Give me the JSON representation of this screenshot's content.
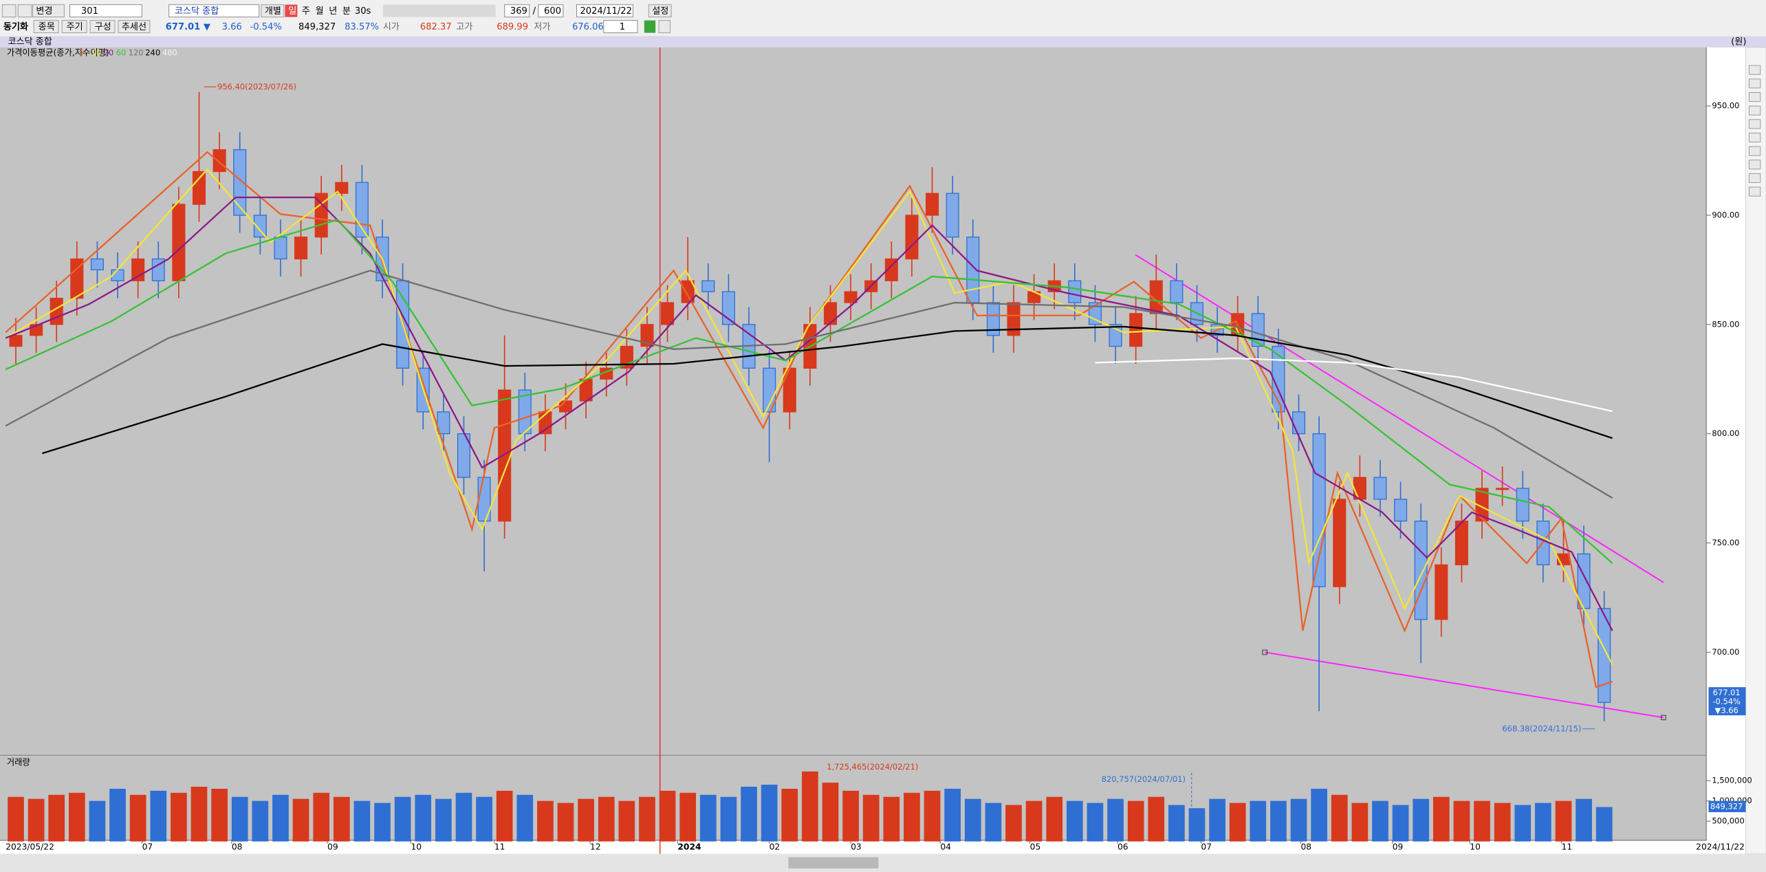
{
  "toolbar": {
    "row1": {
      "change": "변경",
      "code": "301",
      "name": "코스닥 종합",
      "single": "개별",
      "periods": [
        "일",
        "주",
        "월",
        "년",
        "분",
        "30s"
      ],
      "count": "369",
      "slash": "/",
      "max": "600",
      "date": "2024/11/22",
      "settings": "설정"
    },
    "row2": {
      "sync": "동기화",
      "stock": "종목",
      "cycle": "주기",
      "compose": "구성",
      "trend": "추세선",
      "price": "677.01 ▼",
      "change": "3.66",
      "rate": "-0.54%",
      "volume": "849,327",
      "vol_rate": "83.57%",
      "open_label": "시가",
      "open": "682.37",
      "high_label": "고가",
      "high": "689.99",
      "low_label": "저가",
      "low": "676.06",
      "step": "1"
    },
    "unit": "(원)"
  },
  "chart_data": [
    {
      "type": "candlestick",
      "title": "코스닥 종합",
      "legend_title": "가격이동평균(종가,지수이평)",
      "open": [
        840,
        845,
        850,
        862,
        880,
        875,
        870,
        880,
        870,
        905,
        920,
        930,
        900,
        890,
        880,
        890,
        910,
        915,
        890,
        870,
        830,
        810,
        800,
        780,
        760,
        820,
        800,
        810,
        815,
        825,
        830,
        840,
        850,
        860,
        870,
        865,
        850,
        830,
        810,
        830,
        850,
        860,
        865,
        870,
        880,
        900,
        910,
        890,
        860,
        845,
        860,
        865,
        870,
        860,
        850,
        840,
        855,
        870,
        860,
        850,
        845,
        855,
        840,
        810,
        800,
        730,
        770,
        780,
        770,
        760,
        715,
        740,
        760,
        775,
        775,
        760,
        740,
        745,
        720
      ],
      "high": [
        853,
        858,
        870,
        888,
        888,
        883,
        888,
        888,
        913,
        956.4,
        938,
        938,
        908,
        898,
        898,
        918,
        923,
        923,
        898,
        878,
        838,
        818,
        808,
        788,
        845,
        828,
        818,
        823,
        833,
        838,
        848,
        858,
        868,
        890,
        878,
        873,
        858,
        838,
        838,
        858,
        868,
        873,
        878,
        888,
        908,
        922,
        918,
        898,
        868,
        868,
        873,
        878,
        878,
        868,
        858,
        863,
        882,
        878,
        868,
        858,
        863,
        863,
        848,
        818,
        808,
        778,
        790,
        788,
        778,
        768,
        748,
        768,
        783,
        785,
        783,
        768,
        760,
        758,
        728
      ],
      "low": [
        832,
        837,
        842,
        854,
        867,
        862,
        862,
        862,
        862,
        897,
        912,
        892,
        882,
        872,
        872,
        882,
        902,
        882,
        862,
        822,
        802,
        792,
        772,
        737,
        752,
        792,
        792,
        802,
        807,
        817,
        822,
        832,
        842,
        852,
        857,
        842,
        822,
        787,
        802,
        822,
        842,
        852,
        857,
        862,
        872,
        892,
        882,
        852,
        837,
        837,
        852,
        857,
        852,
        842,
        832,
        832,
        847,
        852,
        842,
        837,
        837,
        832,
        802,
        792,
        673,
        722,
        762,
        762,
        752,
        695,
        707,
        732,
        752,
        767,
        752,
        732,
        732,
        712,
        668.38
      ],
      "close": [
        845,
        850,
        862,
        880,
        875,
        870,
        880,
        870,
        905,
        920,
        930,
        900,
        890,
        880,
        890,
        910,
        915,
        890,
        870,
        830,
        810,
        800,
        780,
        760,
        820,
        800,
        810,
        815,
        825,
        830,
        840,
        850,
        860,
        870,
        865,
        850,
        830,
        810,
        830,
        850,
        860,
        865,
        870,
        880,
        900,
        910,
        890,
        860,
        845,
        860,
        865,
        870,
        860,
        850,
        840,
        855,
        870,
        860,
        850,
        845,
        855,
        840,
        810,
        800,
        730,
        770,
        780,
        770,
        760,
        715,
        740,
        760,
        775,
        775,
        760,
        740,
        745,
        720,
        677.01
      ],
      "up_color": "#d8391c",
      "down_color": "#2f6fd3",
      "xlim": [
        -0.5,
        78.7
      ],
      "ylim": [
        654.1,
        976.8
      ],
      "grid": false,
      "xticks": [
        {
          "value": 6.2,
          "label": "07"
        },
        {
          "value": 10.6,
          "label": "08"
        },
        {
          "value": 15.3,
          "label": "09"
        },
        {
          "value": 19.4,
          "label": "10"
        },
        {
          "value": 23.5,
          "label": "11"
        },
        {
          "value": 28.2,
          "label": "12"
        },
        {
          "value": 32.5,
          "label": "2024"
        },
        {
          "value": 37,
          "label": "02"
        },
        {
          "value": 41,
          "label": "03"
        },
        {
          "value": 45.4,
          "label": "04"
        },
        {
          "value": 49.8,
          "label": "05"
        },
        {
          "value": 54.1,
          "label": "06"
        },
        {
          "value": 58.2,
          "label": "07"
        },
        {
          "value": 63.1,
          "label": "08"
        },
        {
          "value": 67.6,
          "label": "09"
        },
        {
          "value": 71.4,
          "label": "10"
        },
        {
          "value": 75.9,
          "label": "11"
        }
      ],
      "date_range": [
        "2023/05/22",
        "2024/11/22"
      ],
      "yticks": [
        {
          "value": 700,
          "label": "700.00"
        },
        {
          "value": 750,
          "label": "750.00"
        },
        {
          "value": 800,
          "label": "800.00"
        },
        {
          "value": 850,
          "label": "850.00"
        },
        {
          "value": 900,
          "label": "900.00"
        },
        {
          "value": 950,
          "label": "950.00"
        }
      ],
      "series": [
        {
          "name": "5",
          "color": "#e8632a",
          "x": [
            -0.5,
            9.4,
            13,
            17.4,
            22.4,
            23.5,
            26.8,
            32.3,
            36.7,
            38.9,
            43.9,
            47.2,
            52.2,
            54.9,
            58.2,
            59.9,
            62.1,
            63.2,
            64.9,
            68.2,
            70.9,
            74.2,
            75.9,
            77.6,
            78.4
          ],
          "values": [
            846.4,
            928.9,
            900.5,
            895.4,
            756.2,
            802.6,
            812.9,
            874.7,
            802.6,
            849,
            913.4,
            854.1,
            854.1,
            869.6,
            843.8,
            851.5,
            812.9,
            709.8,
            782,
            709.8,
            771.6,
            740.7,
            761.3,
            684,
            686.6
          ]
        },
        {
          "name": "10",
          "color": "#f2e63a",
          "x": [
            -0.5,
            4.7,
            9.4,
            12.5,
            15.8,
            18,
            21.3,
            22.9,
            24.6,
            29,
            32.9,
            36.7,
            38.9,
            43.9,
            46.1,
            48.9,
            54.4,
            59.9,
            62.7,
            63.5,
            65.4,
            68.2,
            70.9,
            75.3,
            78.4
          ],
          "values": [
            843.8,
            872,
            921,
            887.6,
            910.8,
            880,
            782,
            756.2,
            797.4,
            833.5,
            874.7,
            807.7,
            849,
            910.8,
            864.4,
            869.6,
            846.4,
            849,
            792.3,
            740.7,
            782,
            720,
            771.6,
            751,
            694.3
          ]
        },
        {
          "name": "20",
          "color": "#8a1a8a",
          "x": [
            -0.5,
            3.6,
            7.5,
            10.8,
            14.7,
            17.4,
            21.3,
            22.9,
            25.7,
            30.1,
            33.4,
            37.8,
            41.1,
            45,
            47.2,
            51.6,
            57.1,
            61.6,
            63.8,
            67.1,
            69.3,
            71.5,
            73.7,
            76.4,
            78.4
          ],
          "values": [
            843.8,
            859.3,
            880,
            908.2,
            908.2,
            882.5,
            812.9,
            784.5,
            800,
            828.4,
            863.4,
            833.5,
            859.3,
            895.4,
            874.7,
            864.4,
            854,
            828.4,
            782,
            764,
            743.3,
            764,
            756.2,
            745.9,
            709.8
          ]
        },
        {
          "name": "60",
          "color": "#36c236",
          "x": [
            -0.5,
            4.7,
            10.3,
            15.8,
            18.5,
            22.4,
            26.8,
            33.4,
            37.8,
            45,
            51.6,
            57.1,
            61.6,
            65.4,
            70.4,
            75.3,
            78.4
          ],
          "values": [
            829.4,
            851.5,
            882.5,
            898,
            869.6,
            812.9,
            820.6,
            843.8,
            833.5,
            872,
            867,
            859.3,
            838.7,
            812.9,
            776.8,
            766.5,
            740.7
          ]
        },
        {
          "name": "120",
          "color": "#6e6e6e",
          "x": [
            -0.5,
            7.5,
            17.4,
            24,
            32.3,
            37.8,
            46.1,
            54.4,
            59.9,
            65.4,
            72.6,
            78.4
          ],
          "values": [
            803.6,
            843.8,
            874.7,
            856.7,
            838.7,
            841,
            860,
            858,
            849,
            833.5,
            802.6,
            770.6
          ]
        },
        {
          "name": "240",
          "color": "#000000",
          "x": [
            1.3,
            10.3,
            18,
            24,
            32.3,
            40.6,
            46.1,
            54.4,
            59.9,
            65.4,
            70.9,
            78.4
          ],
          "values": [
            791,
            817,
            841,
            831,
            832,
            840,
            847,
            849,
            845,
            836,
            821,
            798
          ]
        },
        {
          "name": "480",
          "color": "#ffffff",
          "x": [
            53,
            59.9,
            65.4,
            70.9,
            78.4
          ],
          "values": [
            832.5,
            834.5,
            832.5,
            825.8,
            810.3
          ]
        }
      ],
      "high_label": "956.40(2023/07/26)",
      "low_label": "668.38(2024/11/15)",
      "last_labels": [
        "677.01",
        "-0.54%",
        "▼3.66"
      ]
    },
    {
      "type": "bar",
      "title": "거래량",
      "values": [
        1100000,
        1050000,
        1150000,
        1200000,
        1000000,
        1300000,
        1150000,
        1250000,
        1200000,
        1350000,
        1300000,
        1100000,
        1000000,
        1150000,
        1050000,
        1200000,
        1100000,
        1000000,
        950000,
        1100000,
        1150000,
        1050000,
        1200000,
        1100000,
        1250000,
        1150000,
        1000000,
        950000,
        1050000,
        1100000,
        1000000,
        1100000,
        1250000,
        1200000,
        1150000,
        1100000,
        1350000,
        1400000,
        1300000,
        1725465,
        1450000,
        1250000,
        1150000,
        1100000,
        1200000,
        1250000,
        1300000,
        1050000,
        950000,
        900000,
        1000000,
        1100000,
        1000000,
        950000,
        1050000,
        1000000,
        1100000,
        900000,
        820757,
        1050000,
        950000,
        1000000,
        1000000,
        1050000,
        1300000,
        1150000,
        950000,
        1000000,
        900000,
        1050000,
        1100000,
        1000000,
        1000000,
        950000,
        900000,
        950000,
        1000000,
        1050000,
        849327
      ],
      "ylim": [
        0,
        2083000
      ],
      "yticks": [
        {
          "value": 500000,
          "label": "500,000"
        },
        {
          "value": 1000000,
          "label": "1,000,000"
        },
        {
          "value": 1500000,
          "label": "1,500,000"
        }
      ],
      "high_label": "1,725,465(2024/02/21)",
      "marker_label": "820,757(2024/07/01)",
      "last_label": "849,327"
    }
  ]
}
